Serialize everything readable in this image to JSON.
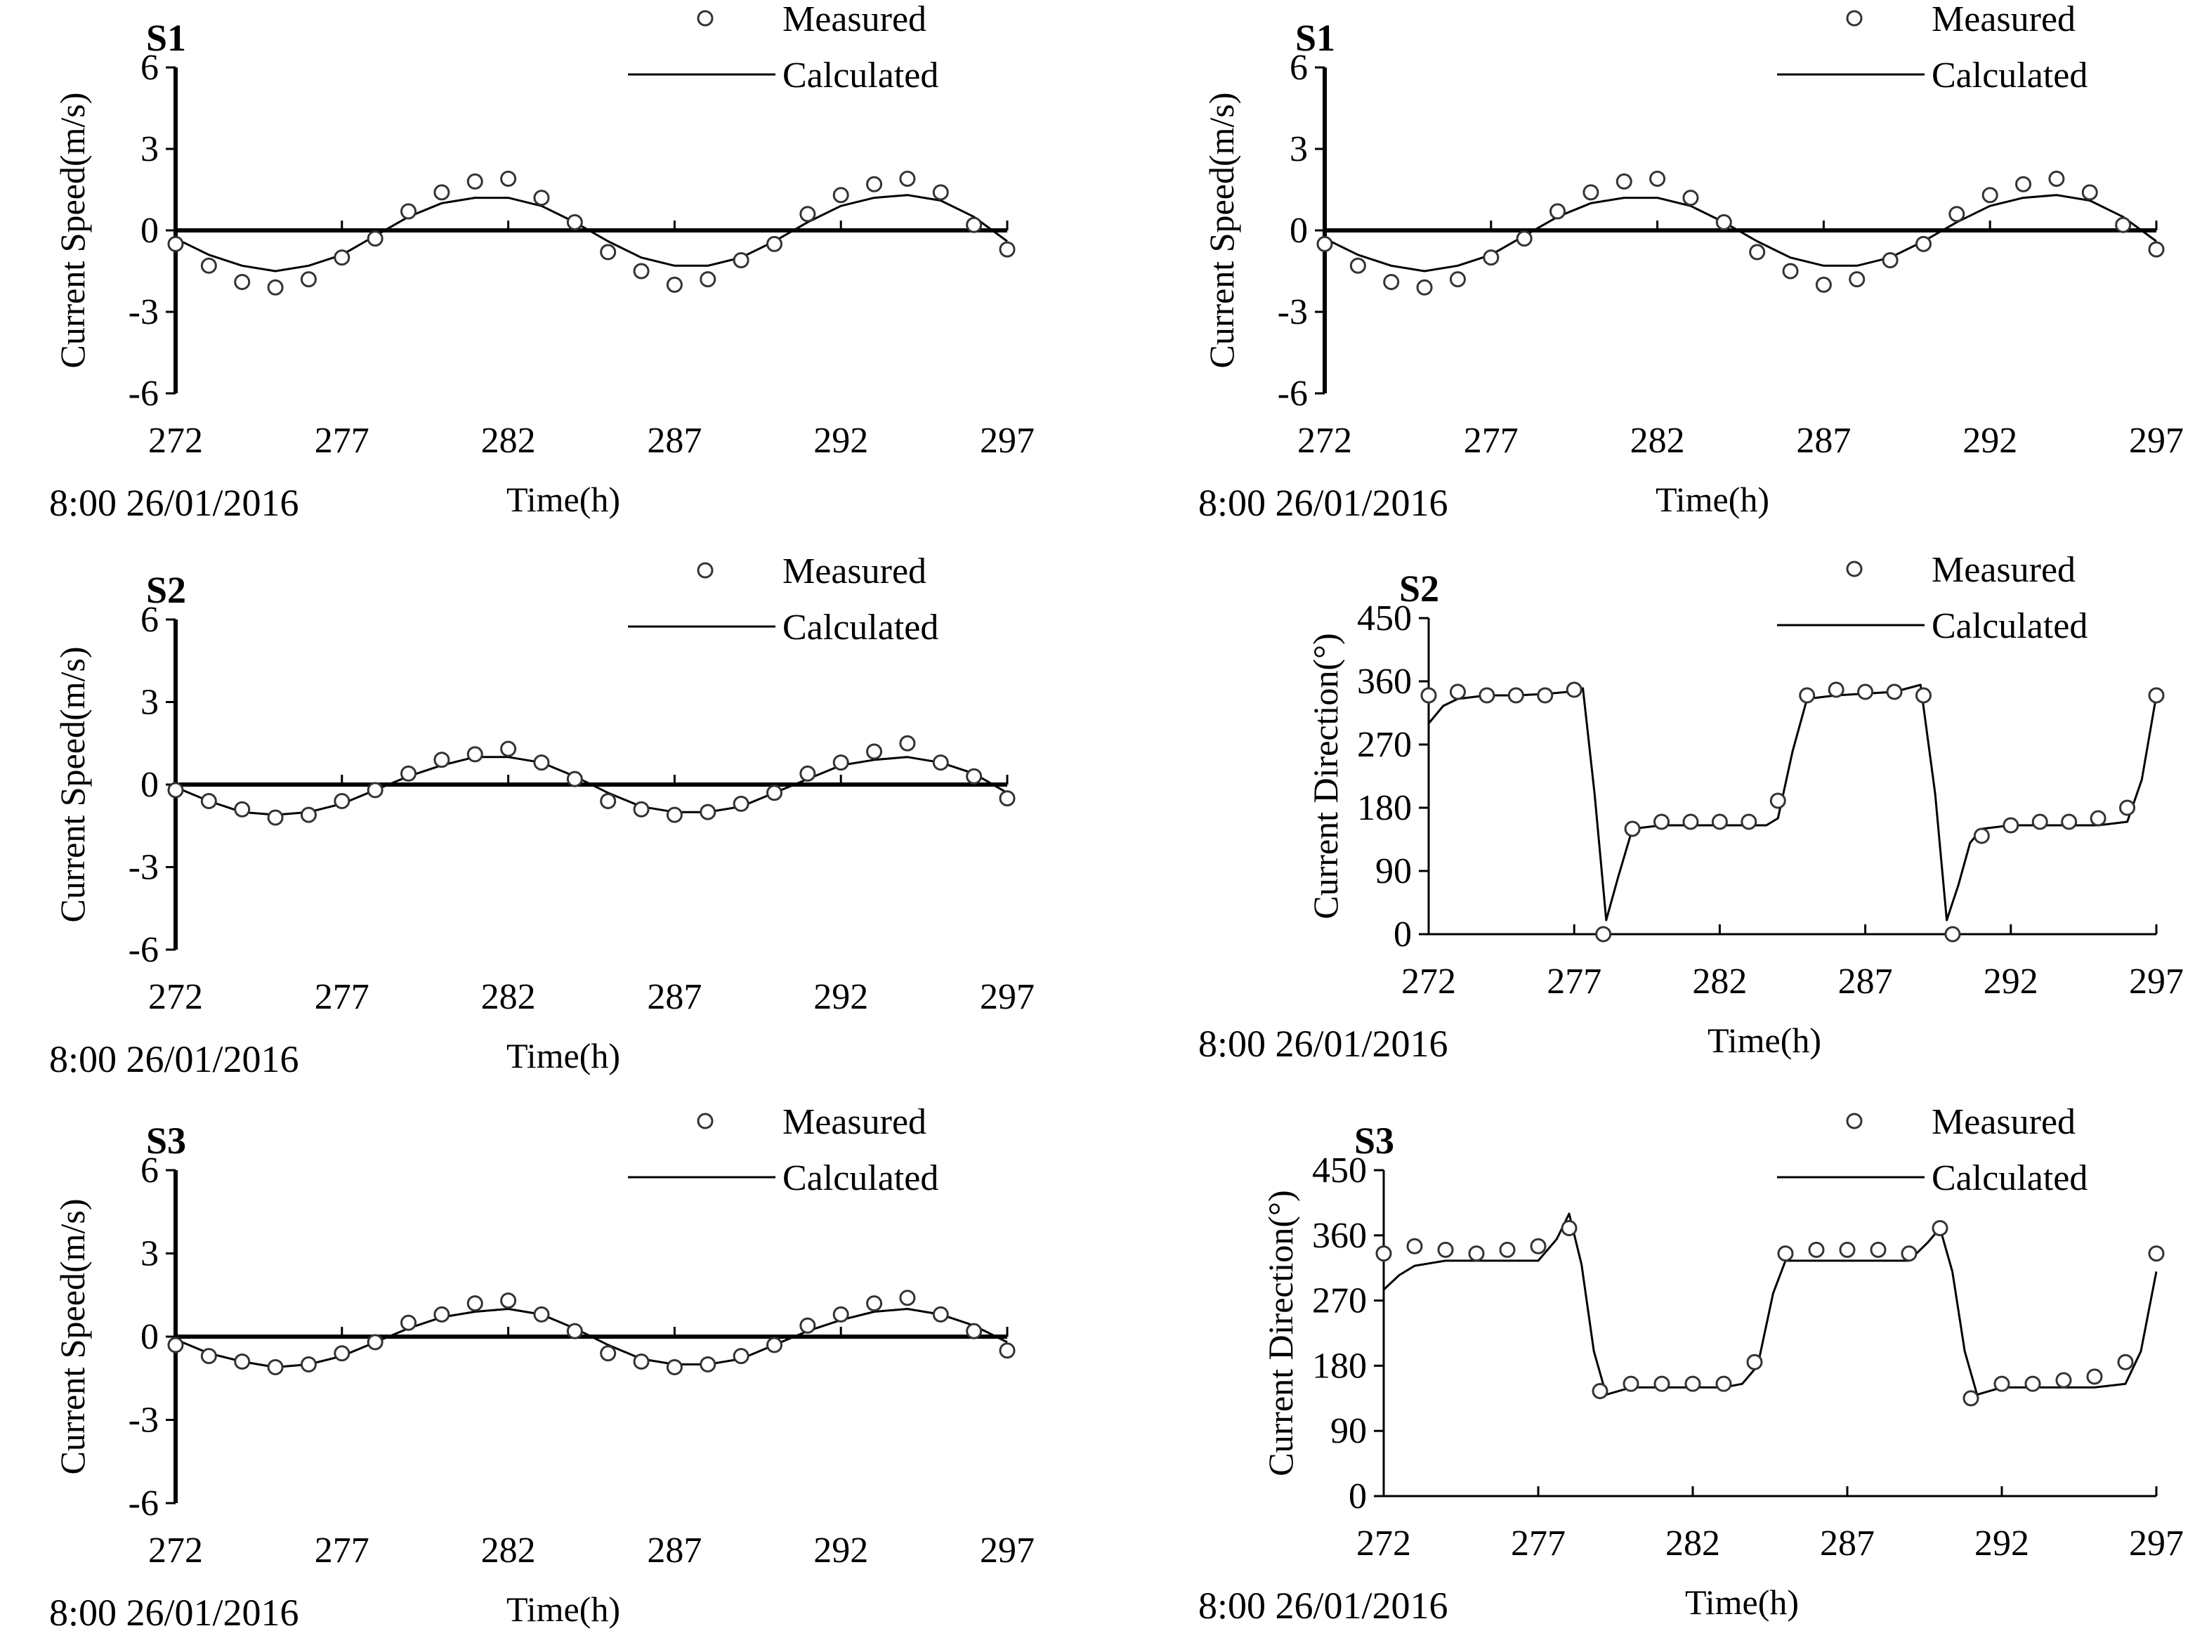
{
  "figure": {
    "date_label": "8:00 26/01/2016",
    "time_axis_label": "Time(h)",
    "legend_measured": "Measured",
    "legend_calculated": "Calculated"
  },
  "chart_data": [
    {
      "id": "S1-speed",
      "type": "line",
      "station": "S1",
      "title": "S1",
      "xlabel": "Time(h)",
      "ylabel": "Current Speed(m/s)",
      "xlim": [
        272,
        297
      ],
      "ylim": [
        -6,
        6
      ],
      "xticks": [
        272,
        277,
        282,
        287,
        292,
        297
      ],
      "yticks": [
        6,
        3,
        0,
        -3,
        -6
      ],
      "legend": [
        "Measured",
        "Calculated"
      ],
      "series": [
        {
          "name": "Measured",
          "x": [
            272,
            273,
            274,
            275,
            276,
            277,
            278,
            279,
            280,
            281,
            282,
            283,
            284,
            285,
            286,
            287,
            288,
            289,
            290,
            291,
            292,
            293,
            294,
            295,
            296,
            297
          ],
          "y": [
            -0.5,
            -1.3,
            -1.9,
            -2.1,
            -1.8,
            -1.0,
            -0.3,
            0.7,
            1.4,
            1.8,
            1.9,
            1.2,
            0.3,
            -0.8,
            -1.5,
            -2.0,
            -1.8,
            -1.1,
            -0.5,
            0.6,
            1.3,
            1.7,
            1.9,
            1.4,
            0.2,
            -0.7
          ]
        },
        {
          "name": "Calculated",
          "x": [
            272,
            273,
            274,
            275,
            276,
            277,
            278,
            279,
            280,
            281,
            282,
            283,
            284,
            285,
            286,
            287,
            288,
            289,
            290,
            291,
            292,
            293,
            294,
            295,
            296,
            297
          ],
          "y": [
            -0.3,
            -0.9,
            -1.3,
            -1.5,
            -1.3,
            -0.9,
            -0.2,
            0.5,
            1.0,
            1.2,
            1.2,
            0.9,
            0.3,
            -0.4,
            -1.0,
            -1.3,
            -1.3,
            -1.0,
            -0.4,
            0.3,
            0.9,
            1.2,
            1.3,
            1.1,
            0.5,
            -0.4
          ]
        }
      ]
    },
    {
      "id": "S1-speed-copy",
      "type": "line",
      "station": "S1",
      "title": "S1",
      "xlabel": "Time(h)",
      "ylabel": "Current Speed(m/s)",
      "xlim": [
        272,
        297
      ],
      "ylim": [
        -6,
        6
      ],
      "xticks": [
        272,
        277,
        282,
        287,
        292,
        297
      ],
      "yticks": [
        6,
        3,
        0,
        -3,
        -6
      ],
      "legend": [
        "Measured",
        "Calculated"
      ],
      "series": [
        {
          "name": "Measured",
          "x": [
            272,
            273,
            274,
            275,
            276,
            277,
            278,
            279,
            280,
            281,
            282,
            283,
            284,
            285,
            286,
            287,
            288,
            289,
            290,
            291,
            292,
            293,
            294,
            295,
            296,
            297
          ],
          "y": [
            -0.5,
            -1.3,
            -1.9,
            -2.1,
            -1.8,
            -1.0,
            -0.3,
            0.7,
            1.4,
            1.8,
            1.9,
            1.2,
            0.3,
            -0.8,
            -1.5,
            -2.0,
            -1.8,
            -1.1,
            -0.5,
            0.6,
            1.3,
            1.7,
            1.9,
            1.4,
            0.2,
            -0.7
          ]
        },
        {
          "name": "Calculated",
          "x": [
            272,
            273,
            274,
            275,
            276,
            277,
            278,
            279,
            280,
            281,
            282,
            283,
            284,
            285,
            286,
            287,
            288,
            289,
            290,
            291,
            292,
            293,
            294,
            295,
            296,
            297
          ],
          "y": [
            -0.3,
            -0.9,
            -1.3,
            -1.5,
            -1.3,
            -0.9,
            -0.2,
            0.5,
            1.0,
            1.2,
            1.2,
            0.9,
            0.3,
            -0.4,
            -1.0,
            -1.3,
            -1.3,
            -1.0,
            -0.4,
            0.3,
            0.9,
            1.2,
            1.3,
            1.1,
            0.5,
            -0.4
          ]
        }
      ]
    },
    {
      "id": "S2-speed",
      "type": "line",
      "station": "S2",
      "title": "S2",
      "xlabel": "Time(h)",
      "ylabel": "Current Speed(m/s)",
      "xlim": [
        272,
        297
      ],
      "ylim": [
        -6,
        6
      ],
      "xticks": [
        272,
        277,
        282,
        287,
        292,
        297
      ],
      "yticks": [
        6,
        3,
        0,
        -3,
        -6
      ],
      "legend": [
        "Measured",
        "Calculated"
      ],
      "series": [
        {
          "name": "Measured",
          "x": [
            272,
            273,
            274,
            275,
            276,
            277,
            278,
            279,
            280,
            281,
            282,
            283,
            284,
            285,
            286,
            287,
            288,
            289,
            290,
            291,
            292,
            293,
            294,
            295,
            296,
            297
          ],
          "y": [
            -0.2,
            -0.6,
            -0.9,
            -1.2,
            -1.1,
            -0.6,
            -0.2,
            0.4,
            0.9,
            1.1,
            1.3,
            0.8,
            0.2,
            -0.6,
            -0.9,
            -1.1,
            -1.0,
            -0.7,
            -0.3,
            0.4,
            0.8,
            1.2,
            1.5,
            0.8,
            0.3,
            -0.5
          ]
        },
        {
          "name": "Calculated",
          "x": [
            272,
            273,
            274,
            275,
            276,
            277,
            278,
            279,
            280,
            281,
            282,
            283,
            284,
            285,
            286,
            287,
            288,
            289,
            290,
            291,
            292,
            293,
            294,
            295,
            296,
            297
          ],
          "y": [
            -0.1,
            -0.6,
            -1.0,
            -1.1,
            -1.0,
            -0.7,
            -0.2,
            0.3,
            0.7,
            1.0,
            1.0,
            0.8,
            0.3,
            -0.3,
            -0.8,
            -1.0,
            -1.0,
            -0.8,
            -0.3,
            0.2,
            0.7,
            0.9,
            1.0,
            0.8,
            0.4,
            -0.3
          ]
        }
      ]
    },
    {
      "id": "S2-direction",
      "type": "line",
      "station": "S2",
      "title": "S2",
      "xlabel": "Time(h)",
      "ylabel": "Current Direction(°)",
      "xlim": [
        272,
        297
      ],
      "ylim": [
        0,
        450
      ],
      "xticks": [
        272,
        277,
        282,
        287,
        292,
        297
      ],
      "yticks": [
        450,
        360,
        270,
        180,
        90,
        0
      ],
      "legend": [
        "Measured",
        "Calculated"
      ],
      "series": [
        {
          "name": "Measured",
          "x": [
            272,
            273,
            274,
            275,
            276,
            277,
            278,
            279,
            280,
            281,
            282,
            283,
            284,
            285,
            286,
            287,
            288,
            289,
            290,
            291,
            292,
            293,
            294,
            295,
            296,
            297
          ],
          "y": [
            340,
            345,
            340,
            340,
            340,
            348,
            0,
            150,
            160,
            160,
            160,
            160,
            190,
            340,
            348,
            345,
            345,
            340,
            0,
            140,
            155,
            160,
            160,
            165,
            180,
            340
          ]
        },
        {
          "name": "Calculated",
          "x": [
            272,
            272.5,
            273,
            274,
            275,
            276,
            276.8,
            277.3,
            277.7,
            278.1,
            278.5,
            279,
            280,
            282,
            283.6,
            284,
            284.5,
            285,
            286,
            288,
            288.9,
            289.4,
            289.8,
            290.2,
            290.6,
            291,
            292,
            295,
            296,
            296.5,
            297
          ],
          "y": [
            300,
            325,
            335,
            340,
            340,
            342,
            345,
            350,
            200,
            20,
            80,
            150,
            155,
            155,
            155,
            165,
            260,
            335,
            340,
            345,
            355,
            200,
            20,
            70,
            130,
            150,
            155,
            155,
            160,
            220,
            340
          ]
        }
      ]
    },
    {
      "id": "S3-speed",
      "type": "line",
      "station": "S3",
      "title": "S3",
      "xlabel": "Time(h)",
      "ylabel": "Current Speed(m/s)",
      "xlim": [
        272,
        297
      ],
      "ylim": [
        -6,
        6
      ],
      "xticks": [
        272,
        277,
        282,
        287,
        292,
        297
      ],
      "yticks": [
        6,
        3,
        0,
        -3,
        -6
      ],
      "legend": [
        "Measured",
        "Calculated"
      ],
      "series": [
        {
          "name": "Measured",
          "x": [
            272,
            273,
            274,
            275,
            276,
            277,
            278,
            279,
            280,
            281,
            282,
            283,
            284,
            285,
            286,
            287,
            288,
            289,
            290,
            291,
            292,
            293,
            294,
            295,
            296,
            297
          ],
          "y": [
            -0.3,
            -0.7,
            -0.9,
            -1.1,
            -1.0,
            -0.6,
            -0.2,
            0.5,
            0.8,
            1.2,
            1.3,
            0.8,
            0.2,
            -0.6,
            -0.9,
            -1.1,
            -1.0,
            -0.7,
            -0.3,
            0.4,
            0.8,
            1.2,
            1.4,
            0.8,
            0.2,
            -0.5
          ]
        },
        {
          "name": "Calculated",
          "x": [
            272,
            273,
            274,
            275,
            276,
            277,
            278,
            279,
            280,
            281,
            282,
            283,
            284,
            285,
            286,
            287,
            288,
            289,
            290,
            291,
            292,
            293,
            294,
            295,
            296,
            297
          ],
          "y": [
            -0.1,
            -0.6,
            -0.9,
            -1.1,
            -1.0,
            -0.7,
            -0.2,
            0.3,
            0.7,
            0.9,
            1.0,
            0.8,
            0.3,
            -0.3,
            -0.8,
            -1.0,
            -1.0,
            -0.8,
            -0.3,
            0.2,
            0.6,
            0.9,
            1.0,
            0.8,
            0.4,
            -0.2
          ]
        }
      ]
    },
    {
      "id": "S3-direction",
      "type": "line",
      "station": "S3",
      "title": "S3",
      "xlabel": "Time(h)",
      "ylabel": "Current Direction(°)",
      "xlim": [
        272,
        297
      ],
      "ylim": [
        0,
        450
      ],
      "xticks": [
        272,
        277,
        282,
        287,
        292,
        297
      ],
      "yticks": [
        450,
        360,
        270,
        180,
        90,
        0
      ],
      "legend": [
        "Measured",
        "Calculated"
      ],
      "series": [
        {
          "name": "Measured",
          "x": [
            272,
            273,
            274,
            275,
            276,
            277,
            278,
            279,
            280,
            281,
            282,
            283,
            284,
            285,
            286,
            287,
            288,
            289,
            290,
            291,
            292,
            293,
            294,
            295,
            296,
            297
          ],
          "y": [
            335,
            345,
            340,
            335,
            340,
            345,
            370,
            145,
            155,
            155,
            155,
            155,
            185,
            335,
            340,
            340,
            340,
            335,
            370,
            135,
            155,
            155,
            160,
            165,
            185,
            335
          ]
        },
        {
          "name": "Calculated",
          "x": [
            272,
            272.5,
            273,
            274,
            276,
            277,
            277.6,
            278,
            278.4,
            278.8,
            279.2,
            280,
            283,
            283.6,
            284.1,
            284.6,
            285,
            286,
            289,
            289.6,
            290,
            290.4,
            290.8,
            291.2,
            292,
            295,
            296,
            296.5,
            297
          ],
          "y": [
            285,
            305,
            318,
            325,
            325,
            325,
            355,
            390,
            320,
            200,
            140,
            150,
            150,
            155,
            180,
            280,
            325,
            325,
            325,
            350,
            370,
            310,
            200,
            140,
            150,
            150,
            155,
            200,
            310
          ]
        }
      ]
    }
  ]
}
